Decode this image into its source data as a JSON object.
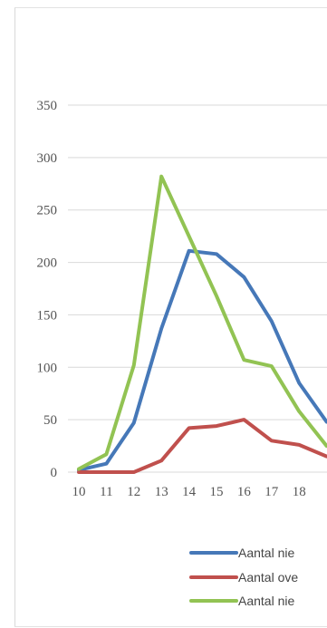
{
  "chart_data": {
    "type": "line",
    "title": "",
    "xlabel": "",
    "ylabel": "",
    "x": [
      10,
      11,
      12,
      13,
      14,
      15,
      16,
      17,
      18,
      19
    ],
    "ylim": [
      0,
      350
    ],
    "yticks": [
      0,
      50,
      100,
      150,
      200,
      250,
      300,
      350
    ],
    "xtick_labels": [
      "10",
      "11",
      "12",
      "13",
      "14",
      "15",
      "16",
      "17",
      "18"
    ],
    "grid": true,
    "legend_position": "bottom-right",
    "series": [
      {
        "name": "Aantal nie",
        "color": "#4678b8",
        "values": [
          2,
          8,
          47,
          137,
          211,
          208,
          186,
          144,
          85,
          48
        ]
      },
      {
        "name": "Aantal ove",
        "color": "#c0504d",
        "values": [
          0,
          0,
          0,
          11,
          42,
          44,
          50,
          30,
          26,
          15
        ]
      },
      {
        "name": "Aantal nie",
        "color": "#92c353",
        "values": [
          3,
          17,
          102,
          282,
          225,
          168,
          107,
          101,
          58,
          25
        ]
      }
    ]
  }
}
